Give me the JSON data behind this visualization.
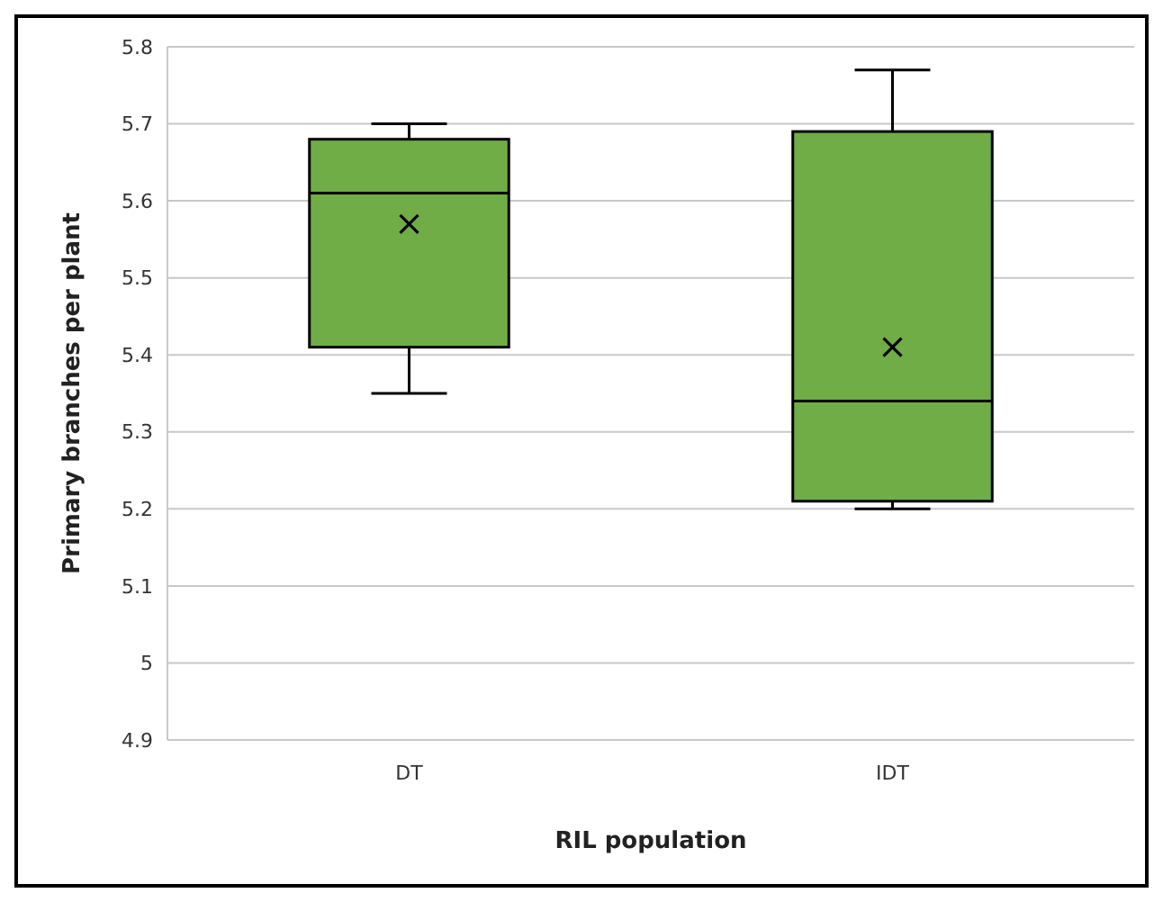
{
  "chart_data": {
    "type": "box",
    "xlabel": "RIL population",
    "ylabel": "Primary branches per plant",
    "categories": [
      "DT",
      "IDT"
    ],
    "color": "#70ad47",
    "ylim": [
      4.9,
      5.8
    ],
    "yticks": [
      4.9,
      5,
      5.1,
      5.2,
      5.3,
      5.4,
      5.5,
      5.6,
      5.7,
      5.8
    ],
    "grid": "y",
    "marker": "cross",
    "boxes": [
      {
        "low": 5.35,
        "q1": 5.41,
        "median": 5.61,
        "q3": 5.68,
        "high": 5.7,
        "mean": 5.57
      },
      {
        "low": 5.2,
        "q1": 5.21,
        "median": 5.34,
        "q3": 5.69,
        "high": 5.77,
        "mean": 5.41
      }
    ]
  }
}
